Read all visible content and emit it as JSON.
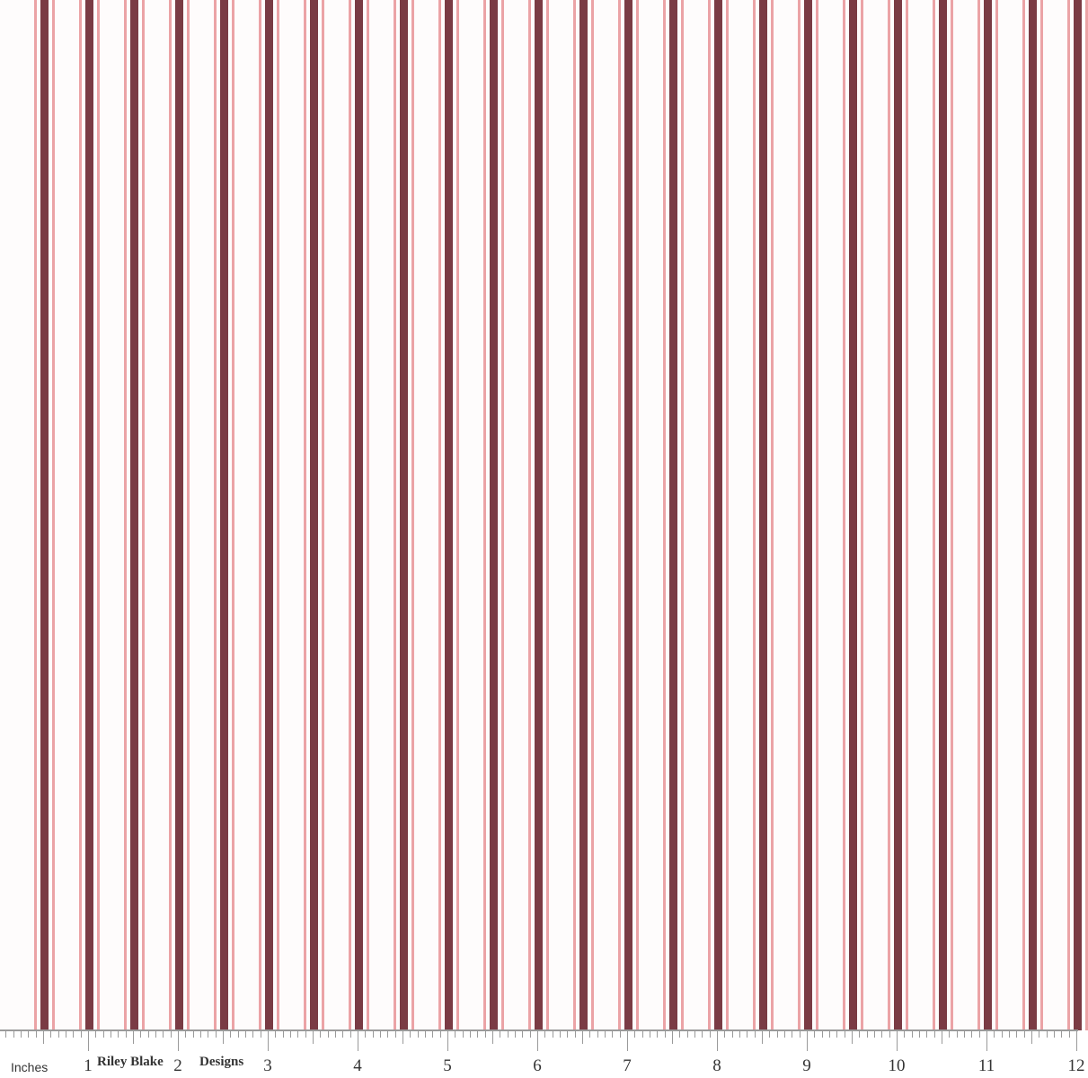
{
  "colors": {
    "background": "#fefcfc",
    "dark_stripe": "#7a3b44",
    "pink_line": "#eba3a6",
    "ruler": "#9a9a9a"
  },
  "ruler": {
    "unit_label": "Inches",
    "numbers": [
      "1",
      "2",
      "3",
      "4",
      "5",
      "6",
      "7",
      "8",
      "9",
      "10",
      "11",
      "12"
    ],
    "brand_left": "Riley Blake",
    "brand_right": "Designs"
  }
}
